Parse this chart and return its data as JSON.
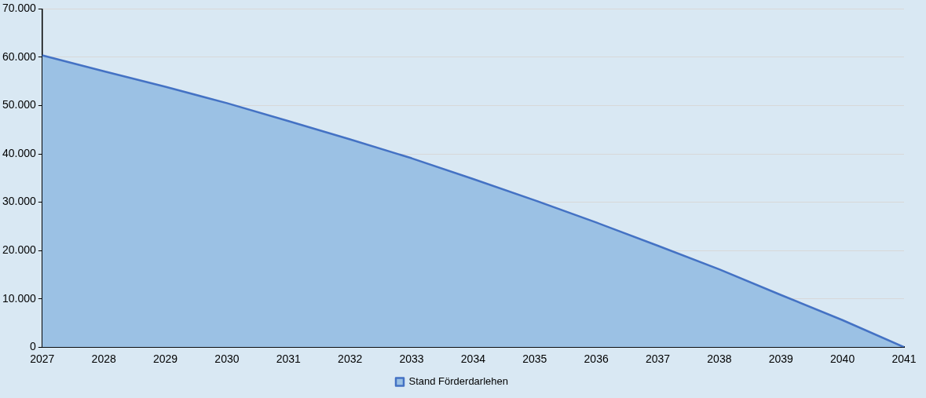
{
  "chart_data": {
    "type": "area",
    "categories": [
      "2027",
      "2028",
      "2029",
      "2030",
      "2031",
      "2032",
      "2033",
      "2034",
      "2035",
      "2036",
      "2037",
      "2038",
      "2039",
      "2040",
      "2041"
    ],
    "series": [
      {
        "name": "Stand Förderdarlehen",
        "color": "#4472c4",
        "values": [
          60400,
          57100,
          53900,
          50500,
          46800,
          43000,
          39100,
          34800,
          30400,
          25800,
          21000,
          16100,
          10800,
          5600,
          0
        ]
      }
    ],
    "ylim": [
      0,
      70000
    ],
    "yticks": [
      {
        "value": 0,
        "label": "0"
      },
      {
        "value": 10000,
        "label": "10.000"
      },
      {
        "value": 20000,
        "label": "20.000"
      },
      {
        "value": 30000,
        "label": "30.000"
      },
      {
        "value": 40000,
        "label": "40.000"
      },
      {
        "value": 50000,
        "label": "50.000"
      },
      {
        "value": 60000,
        "label": "60.000"
      },
      {
        "value": 70000,
        "label": "70.000"
      }
    ],
    "grid": "y",
    "legend": "bottom"
  }
}
